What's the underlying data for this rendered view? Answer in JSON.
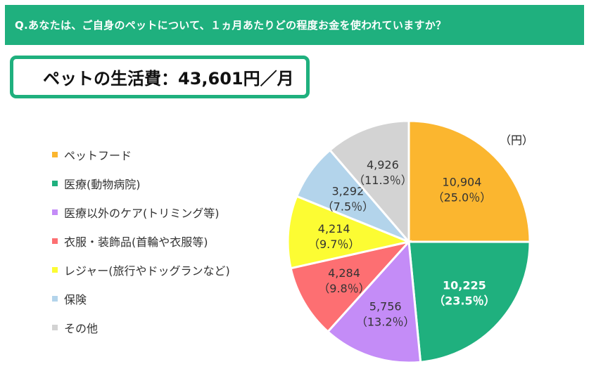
{
  "question": "Q.あなたは、ご自身のペットについて、１ヵ月あたりどの程度お金を使われていますか？",
  "cost_label": "ペットの生活費：",
  "cost_value": "43,601円",
  "cost_suffix": "／月",
  "colors": {
    "accent": "#1fb07e"
  },
  "chart_data": {
    "type": "pie",
    "unit": "（円）",
    "start": "12 o'clock, clockwise",
    "categories": [
      "ペットフード",
      "医療(動物病院)",
      "医療以外のケア(トリミング等)",
      "衣服・装飾品(首輪や衣服等)",
      "レジャー(旅行やドッグランなど)",
      "保険",
      "その他"
    ],
    "values": [
      10904,
      10225,
      5756,
      4284,
      4214,
      3292,
      4926
    ],
    "value_labels": [
      "10,904",
      "10,225",
      "5,756",
      "4,284",
      "4,214",
      "3,292",
      "4,926"
    ],
    "percent_labels": [
      "（25.0％）",
      "（23.5％）",
      "（13.2％）",
      "（9.8％）",
      "（9.7％）",
      "（7.5％）",
      "（11.3％）"
    ],
    "colors": [
      "#fbb62f",
      "#1fb07e",
      "#c48cf7",
      "#fd6f72",
      "#fcfc33",
      "#b3d4eb",
      "#d3d3d3"
    ],
    "label_colors": [
      "#333333",
      "#ffffff",
      "#333333",
      "#333333",
      "#333333",
      "#333333",
      "#333333"
    ],
    "label_bold": [
      false,
      true,
      false,
      false,
      false,
      false,
      false
    ]
  }
}
